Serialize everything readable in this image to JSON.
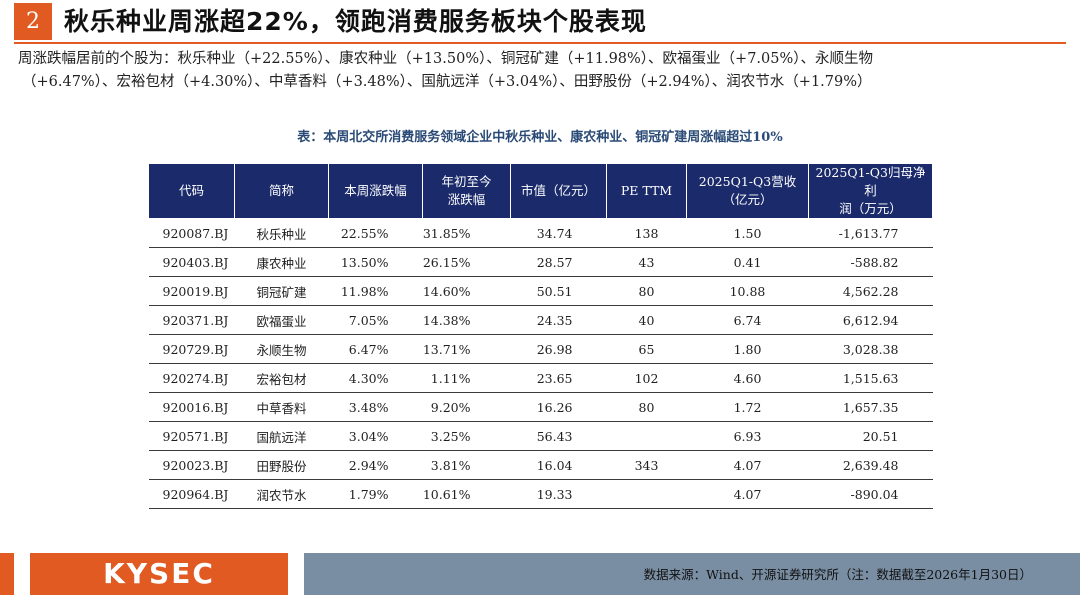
{
  "header": {
    "page_number": "2",
    "title": "秋乐种业周涨超22%，领跑消费服务板块个股表现"
  },
  "summary": {
    "line1": "周涨跌幅居前的个股为：秋乐种业（+22.55%）、康农种业（+13.50%）、铜冠矿建（+11.98%）、欧福蛋业（+7.05%）、永顺生物",
    "line2": "（+6.47%）、宏裕包材（+4.30%）、中草香料（+3.48%）、国航远洋（+3.04%）、田野股份（+2.94%）、润农节水（+1.79%）"
  },
  "table": {
    "caption": "表：本周北交所消费服务领域企业中秋乐种业、康农种业、铜冠矿建周涨幅超过10%",
    "headers": [
      [
        "代码"
      ],
      [
        "简称"
      ],
      [
        "本周涨跌幅"
      ],
      [
        "年初至今",
        "涨跌幅"
      ],
      [
        "市值（亿元）"
      ],
      [
        "PE TTM"
      ],
      [
        "2025Q1-Q3营收",
        "（亿元）"
      ],
      [
        "2025Q1-Q3归母净利",
        "润（万元）"
      ]
    ],
    "rows": [
      [
        "920087.BJ",
        "秋乐种业",
        "22.55%",
        "31.85%",
        "34.74",
        "138",
        "1.50",
        "-1,613.77"
      ],
      [
        "920403.BJ",
        "康农种业",
        "13.50%",
        "26.15%",
        "28.57",
        "43",
        "0.41",
        "-588.82"
      ],
      [
        "920019.BJ",
        "铜冠矿建",
        "11.98%",
        "14.60%",
        "50.51",
        "80",
        "10.88",
        "4,562.28"
      ],
      [
        "920371.BJ",
        "欧福蛋业",
        "7.05%",
        "14.38%",
        "24.35",
        "40",
        "6.74",
        "6,612.94"
      ],
      [
        "920729.BJ",
        "永顺生物",
        "6.47%",
        "13.71%",
        "26.98",
        "65",
        "1.80",
        "3,028.38"
      ],
      [
        "920274.BJ",
        "宏裕包材",
        "4.30%",
        "1.11%",
        "23.65",
        "102",
        "4.60",
        "1,515.63"
      ],
      [
        "920016.BJ",
        "中草香料",
        "3.48%",
        "9.20%",
        "16.26",
        "80",
        "1.72",
        "1,657.35"
      ],
      [
        "920571.BJ",
        "国航远洋",
        "3.04%",
        "3.25%",
        "56.43",
        "",
        "6.93",
        "20.51"
      ],
      [
        "920023.BJ",
        "田野股份",
        "2.94%",
        "3.81%",
        "16.04",
        "343",
        "4.07",
        "2,639.48"
      ],
      [
        "920964.BJ",
        "润农节水",
        "1.79%",
        "10.61%",
        "19.33",
        "",
        "4.07",
        "-890.04"
      ]
    ]
  },
  "footer": {
    "logo_text": "KYSEC",
    "source": "数据来源：Wind、开源证券研究所（注：数据截至2026年1月30日）"
  },
  "colors": {
    "accent": "#e05a22",
    "table_header": "#1a2a6a",
    "source_bar": "#7a8ea3",
    "caption": "#2a4a76"
  }
}
